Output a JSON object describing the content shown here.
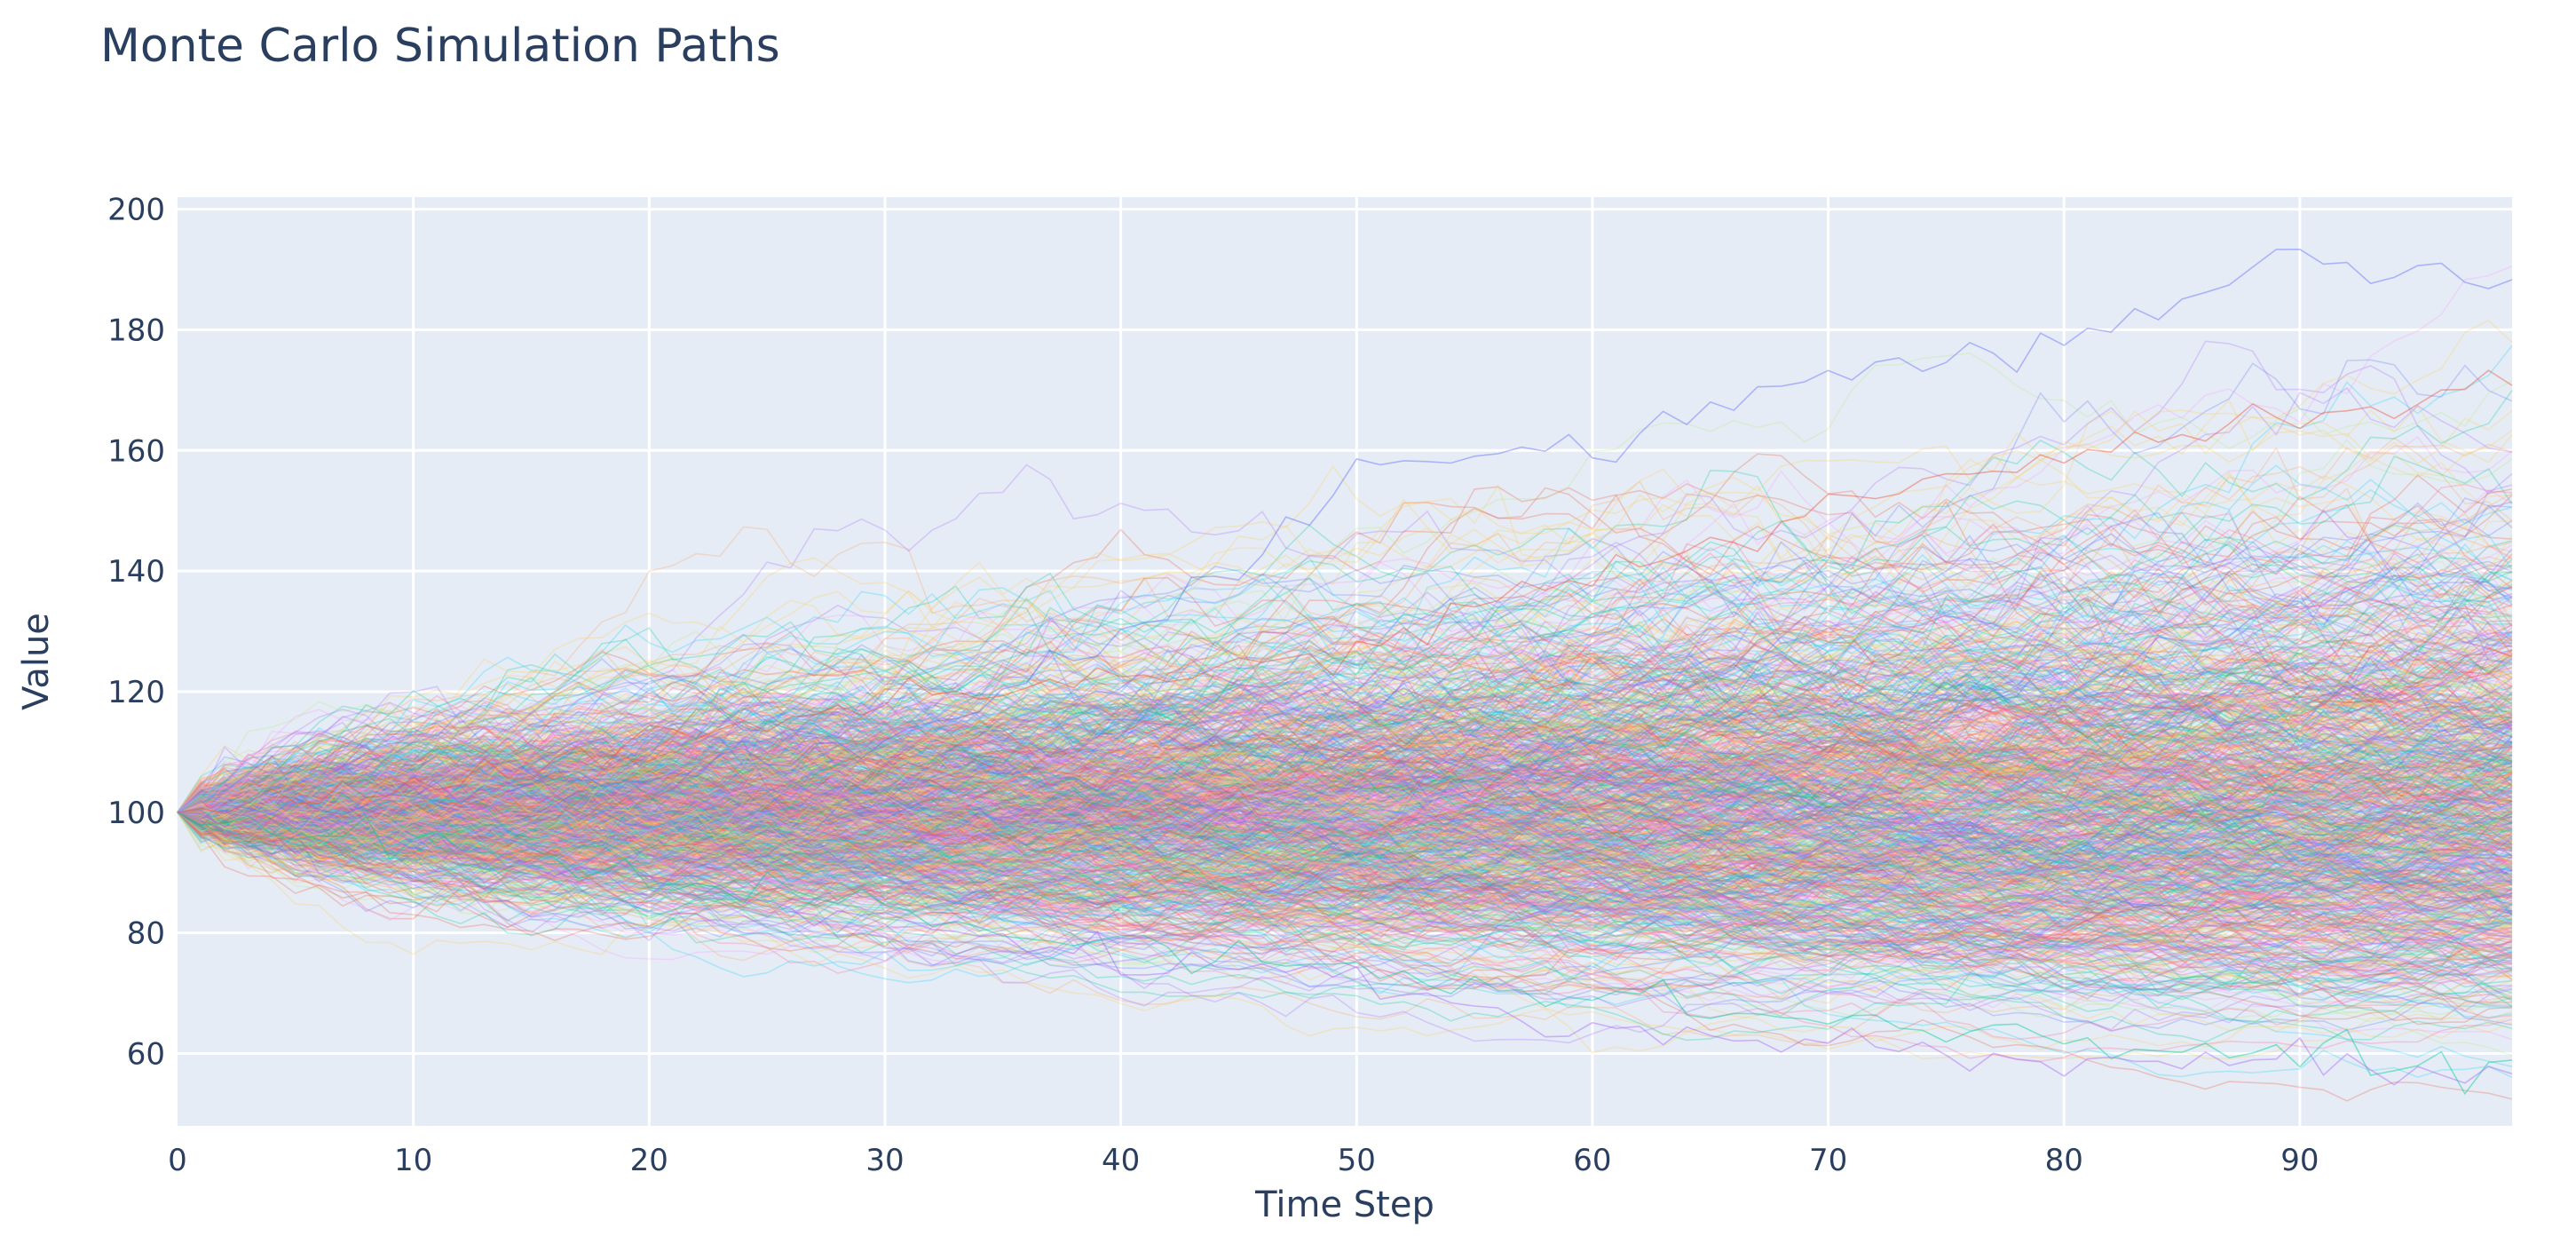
{
  "chart_data": {
    "type": "line",
    "title": "Monte Carlo Simulation Paths",
    "xlabel": "Time Step",
    "ylabel": "Value",
    "xlim": [
      0,
      99
    ],
    "ylim": [
      48,
      202
    ],
    "x_ticks": [
      0,
      10,
      20,
      30,
      40,
      50,
      60,
      70,
      80,
      90
    ],
    "y_ticks": [
      60,
      80,
      100,
      120,
      140,
      160,
      180,
      200
    ],
    "grid": true,
    "legend": "none",
    "plot_background": "#e5ecf6",
    "grid_color": "#ffffff",
    "text_color": "#2a3f5f",
    "series_colors": [
      "#636efa",
      "#ef553b",
      "#00cc96",
      "#ab63fa",
      "#ffa15a",
      "#19d3f3",
      "#ff6692",
      "#b6e880",
      "#ff97ff",
      "#fecb52"
    ],
    "initial_value": 100,
    "num_paths": 1000,
    "num_steps": 100,
    "paths": [
      {
        "series_index": 0,
        "x": [
          0,
          10,
          20,
          30,
          40,
          50,
          60,
          70,
          80,
          90,
          99
        ],
        "y": [
          100,
          103,
          106,
          112,
          128,
          155,
          160,
          172,
          178,
          192,
          188
        ]
      },
      {
        "series_index": 1,
        "x": [
          0,
          10,
          20,
          30,
          40,
          50,
          60,
          70,
          80,
          90,
          99
        ],
        "y": [
          100,
          104,
          112,
          118,
          122,
          128,
          140,
          150,
          160,
          165,
          172
        ]
      },
      {
        "series_index": 2,
        "x": [
          0,
          10,
          20,
          30,
          40,
          50,
          60,
          70,
          80,
          90,
          99
        ],
        "y": [
          100,
          96,
          90,
          84,
          78,
          74,
          70,
          66,
          62,
          60,
          58
        ]
      },
      {
        "series_index": 3,
        "x": [
          0,
          10,
          20,
          30,
          40,
          50,
          60,
          70,
          80,
          90,
          99
        ],
        "y": [
          100,
          95,
          88,
          82,
          76,
          72,
          64,
          62,
          58,
          60,
          56
        ]
      }
    ]
  }
}
